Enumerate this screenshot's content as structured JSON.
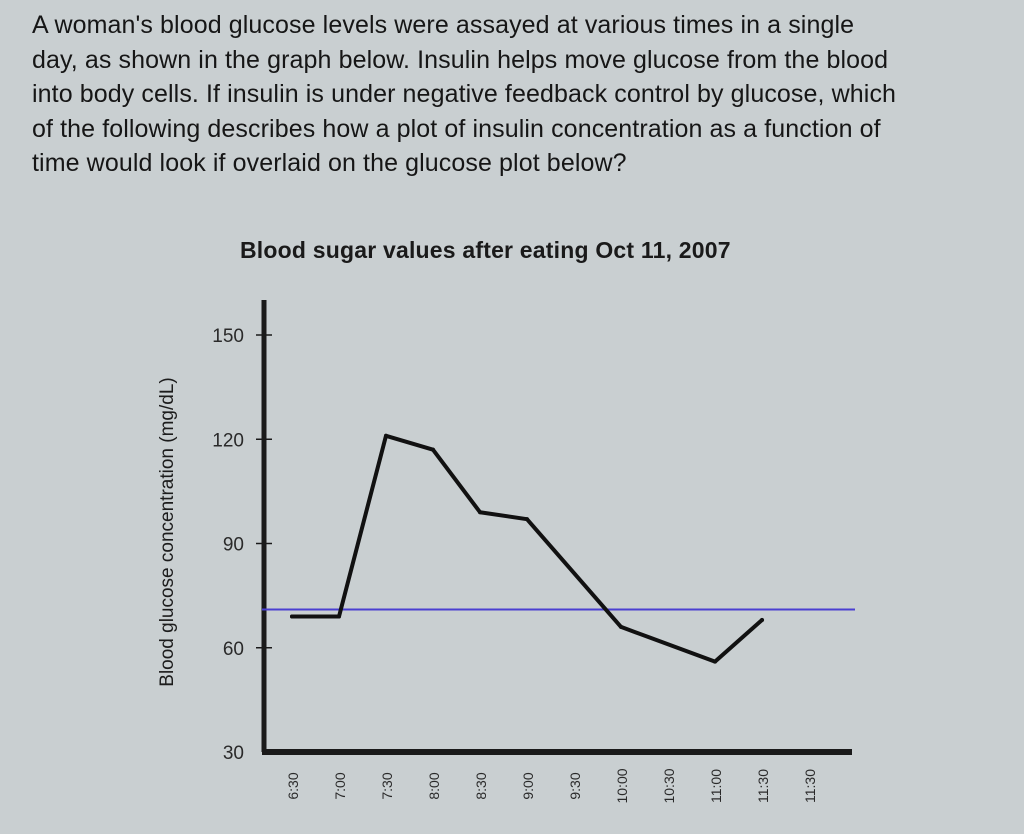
{
  "question": {
    "lines": [
      "A woman's blood glucose levels were assayed at various times in a single",
      "day, as shown in the graph below. Insulin helps move glucose from the blood",
      "into body cells. If insulin is under negative feedback control by glucose, which",
      "of the following describes how a plot of insulin concentration as a function of",
      "time would look if overlaid on the glucose plot below?"
    ]
  },
  "colors": {
    "background": "#c9cfd1",
    "series_line": "#111111",
    "reference_line": "#4a3fd1",
    "axis": "#1a1a1a"
  },
  "chart_data": {
    "type": "line",
    "title": "Blood sugar values after eating Oct 11, 2007",
    "xlabel": "",
    "ylabel": "Blood glucose concentration (mg/dL)",
    "ylim": [
      30,
      150
    ],
    "yticks": [
      150,
      120,
      90,
      60,
      30
    ],
    "categories": [
      "6:30",
      "7:00",
      "7:30",
      "8:00",
      "8:30",
      "9:00",
      "9:30",
      "10:00",
      "10:30",
      "11:00",
      "11:30",
      "11:30"
    ],
    "series": [
      {
        "x": [
          "6:30",
          "7:00",
          "7:30",
          "8:00",
          "8:30",
          "9:00",
          "10:00",
          "11:00",
          "11:30"
        ],
        "values": [
          69,
          69,
          121,
          117,
          99,
          97,
          66,
          56,
          68
        ]
      }
    ],
    "reference_line": {
      "y": 71
    },
    "grid": false,
    "legend": "none"
  }
}
